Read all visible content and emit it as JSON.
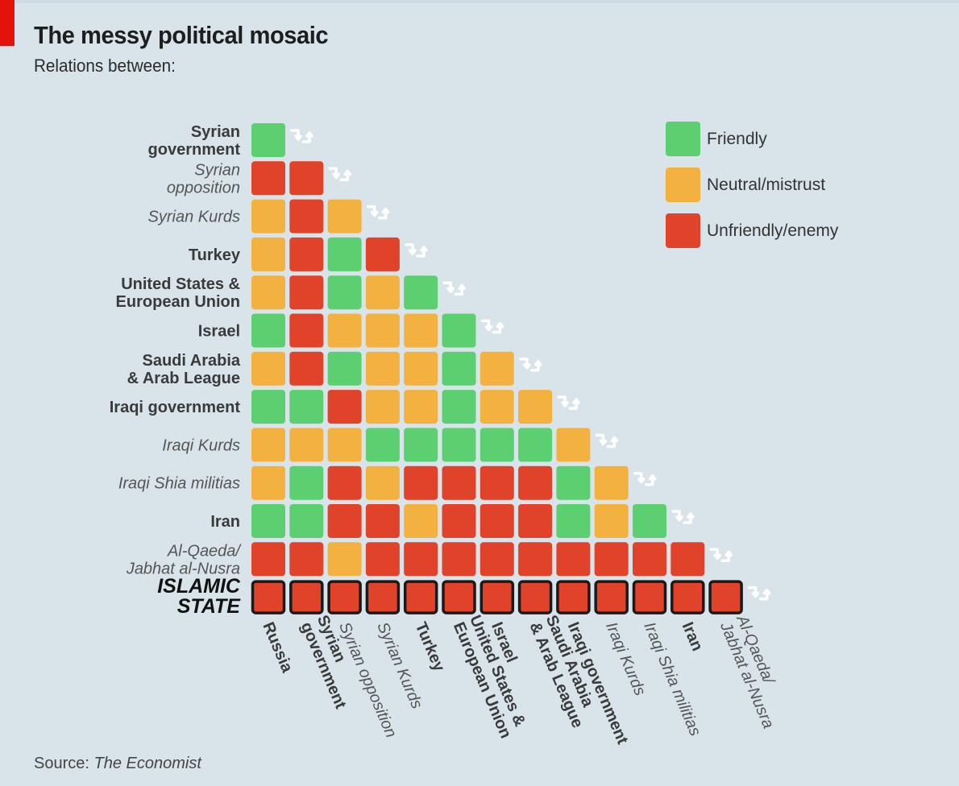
{
  "header": {
    "title": "The messy political mosaic",
    "subtitle": "Relations between:"
  },
  "footer": {
    "source_label": "Source:",
    "source_name": "The Economist"
  },
  "legend": [
    {
      "key": "F",
      "label": "Friendly",
      "color": "#5cd070"
    },
    {
      "key": "N",
      "label": "Neutral/mistrust",
      "color": "#f3b23f"
    },
    {
      "key": "U",
      "label": "Unfriendly/enemy",
      "color": "#e0432a"
    }
  ],
  "colors": {
    "F": "#5cd070",
    "N": "#f3b23f",
    "U": "#e0432a",
    "islamic_state_border": "#1a1a1a",
    "arrow": "#ffffff"
  },
  "chart_data": {
    "type": "heatmap",
    "title": "The messy political mosaic",
    "subtitle": "Relations between:",
    "value_key": {
      "F": "Friendly",
      "N": "Neutral/mistrust",
      "U": "Unfriendly/enemy"
    },
    "row_labels": [
      {
        "lines": [
          "Syrian",
          "government"
        ],
        "style": "bold"
      },
      {
        "lines": [
          "Syrian",
          "opposition"
        ],
        "style": "italic"
      },
      {
        "lines": [
          "Syrian Kurds"
        ],
        "style": "italic"
      },
      {
        "lines": [
          "Turkey"
        ],
        "style": "bold"
      },
      {
        "lines": [
          "United States &",
          "European Union"
        ],
        "style": "bold"
      },
      {
        "lines": [
          "Israel"
        ],
        "style": "bold"
      },
      {
        "lines": [
          "Saudi Arabia",
          "& Arab League"
        ],
        "style": "bold"
      },
      {
        "lines": [
          "Iraqi government"
        ],
        "style": "bold"
      },
      {
        "lines": [
          "Iraqi Kurds"
        ],
        "style": "italic"
      },
      {
        "lines": [
          "Iraqi Shia militias"
        ],
        "style": "italic"
      },
      {
        "lines": [
          "Iran"
        ],
        "style": "bold"
      },
      {
        "lines": [
          "Al-Qaeda/",
          "Jabhat al-Nusra"
        ],
        "style": "italic"
      },
      {
        "lines": [
          "ISLAMIC",
          "STATE"
        ],
        "style": "emph"
      }
    ],
    "column_labels": [
      {
        "lines": [
          "Russia"
        ],
        "style": "bold"
      },
      {
        "lines": [
          "Syrian",
          "government"
        ],
        "style": "bold"
      },
      {
        "lines": [
          "Syrian opposition"
        ],
        "style": "italic"
      },
      {
        "lines": [
          "Syrian Kurds"
        ],
        "style": "italic"
      },
      {
        "lines": [
          "Turkey"
        ],
        "style": "bold"
      },
      {
        "lines": [
          "United States &",
          "European Union"
        ],
        "style": "bold"
      },
      {
        "lines": [
          "Israel"
        ],
        "style": "bold"
      },
      {
        "lines": [
          "Saudi Arabia",
          "& Arab League"
        ],
        "style": "bold"
      },
      {
        "lines": [
          "Iraqi government"
        ],
        "style": "bold"
      },
      {
        "lines": [
          "Iraqi Kurds"
        ],
        "style": "italic"
      },
      {
        "lines": [
          "Iraqi Shia militias"
        ],
        "style": "italic"
      },
      {
        "lines": [
          "Iran"
        ],
        "style": "bold"
      },
      {
        "lines": [
          "Al-Qaeda/",
          "Jabhat al-Nusra"
        ],
        "style": "italic"
      }
    ],
    "matrix": [
      [
        "F"
      ],
      [
        "U",
        "U"
      ],
      [
        "N",
        "U",
        "N"
      ],
      [
        "N",
        "U",
        "F",
        "U"
      ],
      [
        "N",
        "U",
        "F",
        "N",
        "F"
      ],
      [
        "F",
        "U",
        "N",
        "N",
        "N",
        "F"
      ],
      [
        "N",
        "U",
        "F",
        "N",
        "N",
        "F",
        "N"
      ],
      [
        "F",
        "F",
        "U",
        "N",
        "N",
        "F",
        "N",
        "N"
      ],
      [
        "N",
        "N",
        "N",
        "F",
        "F",
        "F",
        "F",
        "F",
        "N"
      ],
      [
        "N",
        "F",
        "U",
        "N",
        "U",
        "U",
        "U",
        "U",
        "F",
        "N"
      ],
      [
        "F",
        "F",
        "U",
        "U",
        "N",
        "U",
        "U",
        "U",
        "F",
        "N",
        "F"
      ],
      [
        "U",
        "U",
        "N",
        "U",
        "U",
        "U",
        "U",
        "U",
        "U",
        "U",
        "U",
        "U"
      ],
      [
        "U",
        "U",
        "U",
        "U",
        "U",
        "U",
        "U",
        "U",
        "U",
        "U",
        "U",
        "U",
        "U"
      ]
    ]
  }
}
